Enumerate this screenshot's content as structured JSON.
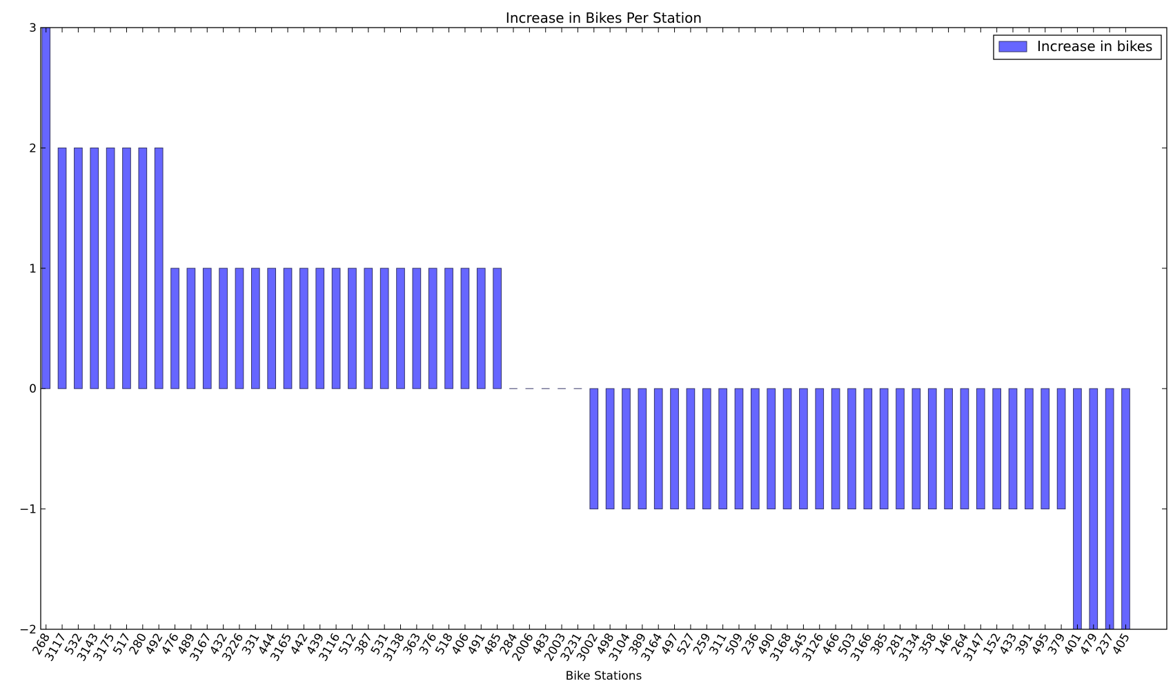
{
  "chart_data": {
    "type": "bar",
    "title": "Increase in Bikes Per Station",
    "xlabel": "Bike Stations",
    "ylabel": "",
    "ylim": [
      -2,
      3
    ],
    "yticks": [
      3,
      2,
      1,
      0,
      -1,
      -2
    ],
    "ytick_labels": [
      "3",
      "2",
      "1",
      "0",
      "−1",
      "−2"
    ],
    "grid": false,
    "legend_position": "top-right",
    "categories": [
      "268",
      "3117",
      "532",
      "3143",
      "3175",
      "517",
      "280",
      "492",
      "476",
      "489",
      "3167",
      "432",
      "3226",
      "331",
      "444",
      "3165",
      "442",
      "439",
      "3116",
      "512",
      "387",
      "531",
      "3138",
      "363",
      "376",
      "518",
      "406",
      "491",
      "485",
      "284",
      "2006",
      "483",
      "2003",
      "3231",
      "3002",
      "498",
      "3104",
      "389",
      "3164",
      "497",
      "527",
      "259",
      "311",
      "509",
      "236",
      "490",
      "3168",
      "545",
      "3126",
      "466",
      "503",
      "3166",
      "385",
      "281",
      "3134",
      "358",
      "146",
      "264",
      "3147",
      "152",
      "433",
      "391",
      "495",
      "379",
      "401",
      "479",
      "237",
      "405"
    ],
    "series": [
      {
        "name": "Increase in bikes",
        "color": "#6666ff",
        "edge_color": "#333366",
        "values": [
          3,
          2,
          2,
          2,
          2,
          2,
          2,
          2,
          1,
          1,
          1,
          1,
          1,
          1,
          1,
          1,
          1,
          1,
          1,
          1,
          1,
          1,
          1,
          1,
          1,
          1,
          1,
          1,
          1,
          0,
          0,
          0,
          0,
          0,
          -1,
          -1,
          -1,
          -1,
          -1,
          -1,
          -1,
          -1,
          -1,
          -1,
          -1,
          -1,
          -1,
          -1,
          -1,
          -1,
          -1,
          -1,
          -1,
          -1,
          -1,
          -1,
          -1,
          -1,
          -1,
          -1,
          -1,
          -1,
          -1,
          -1,
          -2,
          -2,
          -2,
          -2
        ]
      }
    ]
  }
}
